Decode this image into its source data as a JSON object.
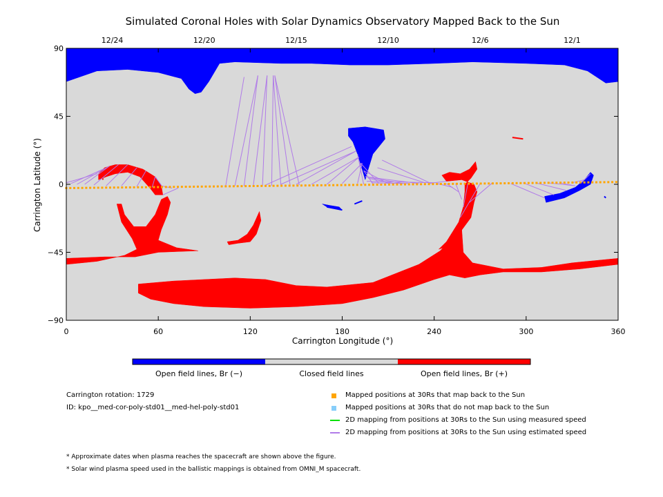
{
  "chart_data": {
    "type": "map",
    "title": "Simulated Coronal Holes with Solar Dynamics Observatory Mapped Back to the Sun",
    "xlabel": "Carrington Longitude (°)",
    "ylabel": "Carrington Latitude (°)",
    "xlim": [
      0,
      360
    ],
    "ylim": [
      -90,
      90
    ],
    "x_ticks": [
      0,
      60,
      120,
      180,
      240,
      300,
      360
    ],
    "y_ticks": [
      90,
      45,
      0,
      -45,
      -90
    ],
    "y_tick_labels": [
      "90",
      "45",
      "0",
      "−45",
      "−90"
    ],
    "top_axis_dates": [
      {
        "label": "12/24",
        "lon": 30
      },
      {
        "label": "12/20",
        "lon": 90
      },
      {
        "label": "12/15",
        "lon": 150
      },
      {
        "label": "12/10",
        "lon": 210
      },
      {
        "label": "12/6",
        "lon": 270
      },
      {
        "label": "12/1",
        "lon": 330
      }
    ],
    "colorbar": {
      "segments": [
        {
          "label": "Open field lines, Br (−)",
          "color": "#0000ff"
        },
        {
          "label": "Closed field lines",
          "color": "#d9d9d9"
        },
        {
          "label": "Open field lines, Br (+)",
          "color": "#ff0000"
        }
      ]
    },
    "background_color": "#d9d9d9",
    "negative_color": "#0000ff",
    "positive_color": "#ff0000",
    "mapped_color": "#ffa500",
    "unmapped_color": "#87cefa",
    "measured_color": "#00e000",
    "estimated_color": "#b07ae8",
    "regions": [
      {
        "name": "north-polar-hole",
        "polarity": "negative",
        "points": [
          [
            0,
            90
          ],
          [
            360,
            90
          ],
          [
            360,
            68
          ],
          [
            352,
            67
          ],
          [
            340,
            75
          ],
          [
            325,
            79
          ],
          [
            300,
            80
          ],
          [
            265,
            81
          ],
          [
            240,
            80
          ],
          [
            210,
            79
          ],
          [
            185,
            79
          ],
          [
            160,
            80
          ],
          [
            140,
            80
          ],
          [
            110,
            81
          ],
          [
            100,
            80
          ],
          [
            93,
            68
          ],
          [
            88,
            61
          ],
          [
            84,
            60
          ],
          [
            80,
            63
          ],
          [
            75,
            70
          ],
          [
            60,
            74
          ],
          [
            40,
            76
          ],
          [
            20,
            75
          ],
          [
            0,
            68
          ]
        ]
      },
      {
        "name": "mid-hole-200",
        "polarity": "negative",
        "points": [
          [
            184,
            37
          ],
          [
            195,
            38
          ],
          [
            207,
            36
          ],
          [
            208,
            30
          ],
          [
            204,
            25
          ],
          [
            200,
            20
          ],
          [
            197,
            10
          ],
          [
            195,
            3
          ],
          [
            193,
            10
          ],
          [
            190,
            20
          ],
          [
            187,
            28
          ],
          [
            184,
            32
          ]
        ]
      },
      {
        "name": "small-hole-170",
        "polarity": "negative",
        "points": [
          [
            167,
            -13
          ],
          [
            172,
            -14
          ],
          [
            178,
            -15
          ],
          [
            180,
            -17
          ],
          [
            176,
            -16
          ],
          [
            170,
            -15
          ]
        ]
      },
      {
        "name": "hole-east",
        "polarity": "negative",
        "points": [
          [
            312,
            -8
          ],
          [
            322,
            -6
          ],
          [
            332,
            -2
          ],
          [
            338,
            3
          ],
          [
            342,
            8
          ],
          [
            344,
            6
          ],
          [
            342,
            0
          ],
          [
            335,
            -4
          ],
          [
            325,
            -9
          ],
          [
            313,
            -12
          ]
        ]
      },
      {
        "name": "arc-hole-20-60",
        "polarity": "positive",
        "points": [
          [
            21,
            7
          ],
          [
            25,
            11
          ],
          [
            32,
            13
          ],
          [
            40,
            13
          ],
          [
            50,
            10
          ],
          [
            58,
            5
          ],
          [
            62,
            -1
          ],
          [
            63,
            -7
          ],
          [
            58,
            -7
          ],
          [
            55,
            -3
          ],
          [
            48,
            5
          ],
          [
            40,
            8
          ],
          [
            32,
            7
          ],
          [
            26,
            5
          ],
          [
            21,
            3
          ]
        ]
      },
      {
        "name": "hook-hole-30-85",
        "polarity": "positive",
        "points": [
          [
            33,
            -13
          ],
          [
            36,
            -13
          ],
          [
            38,
            -20
          ],
          [
            44,
            -28
          ],
          [
            52,
            -28
          ],
          [
            58,
            -20
          ],
          [
            62,
            -10
          ],
          [
            66,
            -8
          ],
          [
            68,
            -12
          ],
          [
            66,
            -20
          ],
          [
            62,
            -30
          ],
          [
            60,
            -37
          ],
          [
            72,
            -42
          ],
          [
            86,
            -44
          ],
          [
            60,
            -45
          ],
          [
            45,
            -48
          ],
          [
            25,
            -48
          ],
          [
            0,
            -49
          ],
          [
            0,
            -53
          ],
          [
            20,
            -51
          ],
          [
            38,
            -47
          ],
          [
            46,
            -43
          ],
          [
            43,
            -36
          ],
          [
            36,
            -25
          ]
        ]
      },
      {
        "name": "sliver-hole-110-127",
        "polarity": "positive",
        "points": [
          [
            105,
            -38
          ],
          [
            112,
            -37
          ],
          [
            118,
            -33
          ],
          [
            122,
            -27
          ],
          [
            126,
            -18
          ],
          [
            127,
            -24
          ],
          [
            124,
            -33
          ],
          [
            120,
            -38
          ],
          [
            112,
            -39
          ],
          [
            106,
            -40
          ]
        ]
      },
      {
        "name": "hole-240-270",
        "polarity": "positive",
        "points": [
          [
            245,
            6
          ],
          [
            250,
            8
          ],
          [
            257,
            7
          ],
          [
            263,
            10
          ],
          [
            267,
            15
          ],
          [
            268,
            10
          ],
          [
            264,
            4
          ],
          [
            260,
            0
          ],
          [
            260,
            -5
          ],
          [
            259,
            -15
          ],
          [
            256,
            -25
          ],
          [
            248,
            -38
          ],
          [
            243,
            -43
          ],
          [
            246,
            -42
          ],
          [
            256,
            -33
          ],
          [
            264,
            -22
          ],
          [
            266,
            -12
          ],
          [
            268,
            -5
          ],
          [
            266,
            0
          ],
          [
            258,
            3
          ],
          [
            248,
            2
          ]
        ]
      },
      {
        "name": "south-hole-large",
        "polarity": "positive",
        "points": [
          [
            47,
            -66
          ],
          [
            70,
            -64
          ],
          [
            110,
            -62
          ],
          [
            130,
            -63
          ],
          [
            150,
            -67
          ],
          [
            170,
            -68
          ],
          [
            200,
            -65
          ],
          [
            230,
            -53
          ],
          [
            244,
            -44
          ],
          [
            252,
            -35
          ],
          [
            256,
            -27
          ],
          [
            258,
            -30
          ],
          [
            259,
            -45
          ],
          [
            265,
            -52
          ],
          [
            285,
            -56
          ],
          [
            310,
            -55
          ],
          [
            330,
            -52
          ],
          [
            360,
            -49
          ],
          [
            360,
            -53
          ],
          [
            335,
            -56
          ],
          [
            310,
            -58
          ],
          [
            285,
            -58
          ],
          [
            270,
            -60
          ],
          [
            260,
            -62
          ],
          [
            250,
            -60
          ],
          [
            240,
            -63
          ],
          [
            220,
            -70
          ],
          [
            200,
            -75
          ],
          [
            180,
            -79
          ],
          [
            150,
            -81
          ],
          [
            120,
            -82
          ],
          [
            90,
            -81
          ],
          [
            70,
            -79
          ],
          [
            55,
            -76
          ],
          [
            47,
            -72
          ]
        ]
      }
    ],
    "thin_features": [
      {
        "polarity": "negative",
        "points": [
          [
            170,
            -15
          ],
          [
            180,
            -17
          ]
        ]
      },
      {
        "polarity": "negative",
        "points": [
          [
            188,
            -13
          ],
          [
            193,
            -11
          ]
        ]
      },
      {
        "polarity": "negative",
        "points": [
          [
            351,
            -8
          ],
          [
            352,
            -9
          ]
        ]
      },
      {
        "polarity": "positive",
        "points": [
          [
            291,
            31
          ],
          [
            298,
            30
          ]
        ]
      },
      {
        "polarity": "positive",
        "points": [
          [
            22,
            8
          ],
          [
            24,
            3
          ]
        ]
      }
    ],
    "mapped_points": {
      "lon_start": 0,
      "lon_end": 360,
      "lon_step": 2.6,
      "lat_start": -2.5,
      "lat_end": 1.5
    },
    "field_line_fans": [
      {
        "footpoints": [
          [
            20,
            7
          ],
          [
            24,
            10
          ],
          [
            28,
            12
          ],
          [
            34,
            13
          ],
          [
            40,
            13
          ],
          [
            46,
            11
          ],
          [
            52,
            9
          ],
          [
            58,
            5
          ],
          [
            62,
            -1
          ],
          [
            63,
            -7
          ]
        ],
        "endpoints": [
          [
            0,
            1
          ],
          [
            3,
            0.5
          ],
          [
            7,
            0
          ],
          [
            12,
            0
          ],
          [
            18,
            -0.5
          ],
          [
            26,
            -1
          ],
          [
            36,
            -1
          ],
          [
            46,
            -1.5
          ],
          [
            56,
            -2
          ],
          [
            63,
            -2
          ],
          [
            69,
            -2.5
          ],
          [
            73,
            -2.5
          ]
        ]
      },
      {
        "footpoints": [
          [
            116,
            71
          ],
          [
            125,
            72
          ],
          [
            131,
            72
          ],
          [
            135,
            72
          ],
          [
            136,
            72
          ]
        ],
        "endpoints": [
          [
            104,
            -1
          ],
          [
            110,
            -1
          ],
          [
            116,
            -1
          ],
          [
            122,
            -1
          ],
          [
            128,
            -1
          ],
          [
            134,
            -1
          ],
          [
            140,
            -0.5
          ],
          [
            146,
            -0.5
          ],
          [
            152,
            -0.5
          ]
        ]
      },
      {
        "footpoints": [
          [
            186,
            25
          ],
          [
            189,
            22
          ],
          [
            191,
            18
          ],
          [
            193,
            14
          ],
          [
            194,
            9
          ],
          [
            195,
            5
          ],
          [
            196,
            2
          ]
        ],
        "endpoints": [
          [
            130,
            -0.5
          ],
          [
            140,
            0
          ],
          [
            150,
            0
          ],
          [
            160,
            0
          ],
          [
            170,
            0
          ],
          [
            180,
            0.5
          ],
          [
            190,
            0.5
          ],
          [
            200,
            0.5
          ],
          [
            210,
            0.5
          ],
          [
            220,
            0.5
          ],
          [
            230,
            0.5
          ],
          [
            240,
            1
          ]
        ]
      },
      {
        "footpoints": [
          [
            190,
            20
          ],
          [
            192,
            14
          ],
          [
            195,
            8
          ],
          [
            197,
            4
          ],
          [
            199,
            1
          ],
          [
            200,
            6
          ],
          [
            203,
            11
          ],
          [
            206,
            16
          ]
        ],
        "endpoints": [
          [
            194,
            0
          ],
          [
            204,
            0.5
          ],
          [
            214,
            0.5
          ],
          [
            224,
            0.5
          ],
          [
            234,
            1
          ],
          [
            238,
            0.5
          ]
        ]
      },
      {
        "footpoints": [
          [
            248,
            2
          ],
          [
            252,
            -2
          ],
          [
            256,
            -5
          ],
          [
            258,
            -10
          ],
          [
            259,
            -15
          ],
          [
            257,
            -22
          ],
          [
            263,
            -12
          ]
        ],
        "endpoints": [
          [
            236,
            0.5
          ],
          [
            242,
            0.5
          ],
          [
            248,
            0.5
          ],
          [
            254,
            0.5
          ],
          [
            262,
            0.5
          ],
          [
            270,
            0.5
          ],
          [
            278,
            1
          ]
        ]
      },
      {
        "footpoints": [
          [
            312,
            -9
          ],
          [
            318,
            -7
          ],
          [
            326,
            -4
          ],
          [
            332,
            -1
          ],
          [
            338,
            3
          ],
          [
            342,
            7
          ]
        ],
        "endpoints": [
          [
            290,
            0.5
          ],
          [
            298,
            1
          ],
          [
            306,
            1
          ],
          [
            314,
            1
          ],
          [
            322,
            1
          ],
          [
            330,
            1
          ],
          [
            336,
            1
          ]
        ]
      }
    ],
    "legend": [
      {
        "label": "Mapped positions at 30Rs that map back to the Sun",
        "marker": "square",
        "color": "#ffa500"
      },
      {
        "label": "Mapped positions at 30Rs that do not map back to the Sun",
        "marker": "square",
        "color": "#87cefa"
      },
      {
        "label": "2D mapping from positions at 30Rs to the Sun using measured speed",
        "marker": "line",
        "color": "#00e000"
      },
      {
        "label": "2D mapping from positions at 30Rs to the Sun using estimated speed",
        "marker": "line",
        "color": "#b07ae8"
      }
    ]
  },
  "info": {
    "rotation": "Carrington rotation: 1729",
    "id": "ID: kpo__med-cor-poly-std01__med-hel-poly-std01"
  },
  "footnotes": [
    "* Approximate dates when plasma reaches the spacecraft are shown above the figure.",
    "* Solar wind plasma speed used in the ballistic mappings is obtained from OMNI_M spacecraft."
  ]
}
